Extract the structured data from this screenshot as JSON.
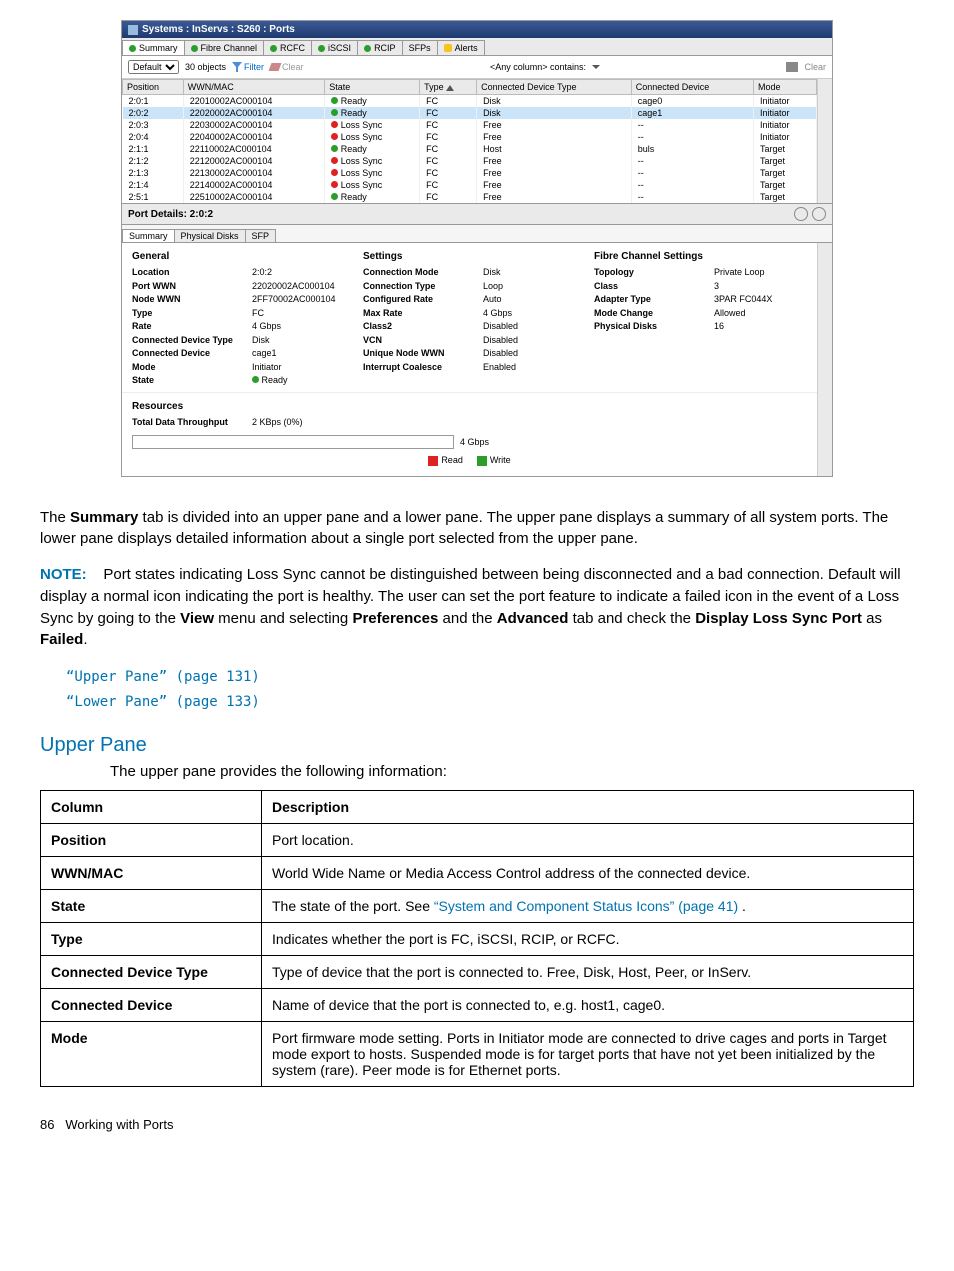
{
  "window_title": "Systems : InServs : S260 : Ports",
  "tabs": [
    "Summary",
    "Fibre Channel",
    "RCFC",
    "iSCSI",
    "RCIP",
    "SFPs",
    "Alerts"
  ],
  "filter": {
    "select": "Default",
    "count": "30 objects",
    "filter": "Filter",
    "clear": "Clear",
    "anycol": "<Any column> contains:",
    "clearbtn": "Clear"
  },
  "cols": [
    "Position",
    "WWN/MAC",
    "State",
    "Type",
    "Connected Device Type",
    "Connected Device",
    "Mode"
  ],
  "rows": [
    {
      "pos": "2:0:1",
      "wwn": "22010002AC000104",
      "state": "Ready",
      "dot": "g",
      "type": "FC",
      "cdt": "Disk",
      "cd": "cage0",
      "mode": "Initiator"
    },
    {
      "pos": "2:0:2",
      "wwn": "22020002AC000104",
      "state": "Ready",
      "dot": "g",
      "type": "FC",
      "cdt": "Disk",
      "cd": "cage1",
      "mode": "Initiator",
      "hl": true
    },
    {
      "pos": "2:0:3",
      "wwn": "22030002AC000104",
      "state": "Loss Sync",
      "dot": "r",
      "type": "FC",
      "cdt": "Free",
      "cd": "--",
      "mode": "Initiator"
    },
    {
      "pos": "2:0:4",
      "wwn": "22040002AC000104",
      "state": "Loss Sync",
      "dot": "r",
      "type": "FC",
      "cdt": "Free",
      "cd": "--",
      "mode": "Initiator"
    },
    {
      "pos": "2:1:1",
      "wwn": "22110002AC000104",
      "state": "Ready",
      "dot": "g",
      "type": "FC",
      "cdt": "Host",
      "cd": "buls",
      "mode": "Target"
    },
    {
      "pos": "2:1:2",
      "wwn": "22120002AC000104",
      "state": "Loss Sync",
      "dot": "r",
      "type": "FC",
      "cdt": "Free",
      "cd": "--",
      "mode": "Target"
    },
    {
      "pos": "2:1:3",
      "wwn": "22130002AC000104",
      "state": "Loss Sync",
      "dot": "r",
      "type": "FC",
      "cdt": "Free",
      "cd": "--",
      "mode": "Target"
    },
    {
      "pos": "2:1:4",
      "wwn": "22140002AC000104",
      "state": "Loss Sync",
      "dot": "r",
      "type": "FC",
      "cdt": "Free",
      "cd": "--",
      "mode": "Target"
    },
    {
      "pos": "2:5:1",
      "wwn": "22510002AC000104",
      "state": "Ready",
      "dot": "g",
      "type": "FC",
      "cdt": "Free",
      "cd": "--",
      "mode": "Target"
    }
  ],
  "details_title": "Port Details: 2:0:2",
  "subtabs": [
    "Summary",
    "Physical Disks",
    "SFP"
  ],
  "general_h": "General",
  "general": {
    "Location": "2:0:2",
    "Port WWN": "22020002AC000104",
    "Node WWN": "2FF70002AC000104",
    "Type": "FC",
    "Rate": "4 Gbps",
    "Connected Device Type": "Disk",
    "Connected Device": "cage1",
    "Mode": "Initiator",
    "State": "● Ready"
  },
  "settings_h": "Settings",
  "settings": {
    "Connection Mode": "Disk",
    "Connection Type": "Loop",
    "Configured Rate": "Auto",
    "Max Rate": "4 Gbps",
    "Class2": "Disabled",
    "VCN": "Disabled",
    "Unique Node WWN": "Disabled",
    "Interrupt Coalesce": "Enabled"
  },
  "fc_h": "Fibre Channel Settings",
  "fc": {
    "Topology": "Private Loop",
    "Class": "3",
    "Adapter Type": "3PAR FC044X",
    "Mode Change": "Allowed",
    "Physical Disks": "16"
  },
  "res_h": "Resources",
  "throughput_l": "Total Data Throughput",
  "throughput_v": "2 KBps (0%)",
  "barmax": "4 Gbps",
  "legend": {
    "read": "Read",
    "write": "Write"
  },
  "body": {
    "p1a": "The ",
    "p1b": "Summary",
    "p1c": " tab is divided into an upper pane and a lower pane. The upper pane displays a summary of all system ports. The lower pane displays detailed information about a single port selected from the upper pane.",
    "p2a": "NOTE:",
    "p2b": "Port states indicating Loss Sync cannot be distinguished between being disconnected and a bad connection. Default will display a normal icon indicating the port is healthy. The user can set the port feature to indicate a failed icon in the event of a Loss Sync by going to the ",
    "p2c": "View",
    "p2d": " menu and selecting ",
    "p2e": "Preferences",
    "p2f": " and the ",
    "p2g": "Advanced",
    "p2h": " tab and check the ",
    "p2i": "Display Loss Sync Port",
    "p2j": " as ",
    "p2k": "Failed",
    "p2l": ".",
    "link1": "“Upper Pane” (page 131)",
    "link2": "“Lower Pane” (page 133)",
    "sec": "Upper Pane",
    "secintro": "The upper pane provides the following information:"
  },
  "table": {
    "h1": "Column",
    "h2": "Description",
    "rows": [
      [
        "Position",
        "Port location."
      ],
      [
        "WWN/MAC",
        "World Wide Name or Media Access Control address of the connected device."
      ],
      [
        "State",
        "The state of the port. See |“System and Component Status Icons” (page 41)| ."
      ],
      [
        "Type",
        "Indicates whether the port is FC, iSCSI, RCIP, or RCFC."
      ],
      [
        "Connected Device Type",
        "Type of device that the port is connected to. Free, Disk, Host, Peer, or InServ."
      ],
      [
        "Connected Device",
        "Name of device that the port is connected to, e.g. host1, cage0."
      ],
      [
        "Mode",
        "Port firmware mode setting. Ports in Initiator mode are connected to drive cages and ports in Target mode export to hosts. Suspended mode is for target ports that have not yet been initialized by the system (rare). Peer mode is for Ethernet ports."
      ]
    ]
  },
  "footer": {
    "page": "86",
    "title": "Working with Ports"
  }
}
